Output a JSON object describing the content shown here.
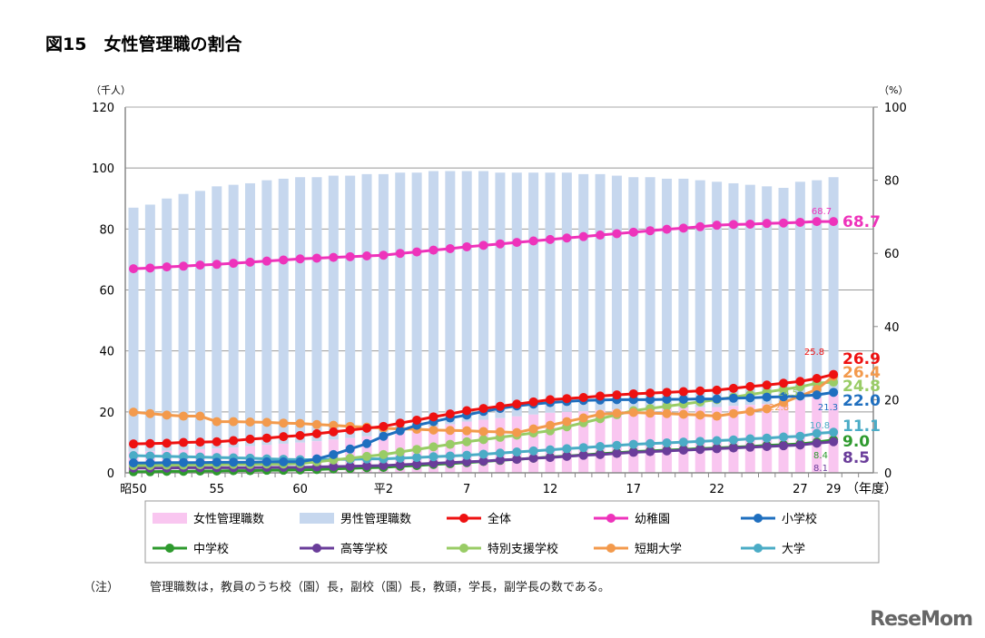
{
  "title": "図15　女性管理職の割合",
  "note": {
    "label": "（注）",
    "text": "管理職数は，教員のうち校（園）長，副校（園）長，教頭，学長，副学長の数である。"
  },
  "logo": "ReseMom",
  "chart_data": {
    "type": "bar+line",
    "left_axis": {
      "unit": "（千人）",
      "range": [
        0,
        120
      ],
      "ticks": [
        0,
        20,
        40,
        60,
        80,
        100,
        120
      ]
    },
    "right_axis": {
      "unit": "（%）",
      "range": [
        0,
        100
      ],
      "ticks": [
        0,
        20,
        40,
        60,
        80,
        100
      ]
    },
    "x_unit": "（年度）",
    "x_tick_labels": [
      {
        "i": 0,
        "label": "昭50"
      },
      {
        "i": 5,
        "label": "55"
      },
      {
        "i": 10,
        "label": "60"
      },
      {
        "i": 15,
        "label": "平2"
      },
      {
        "i": 20,
        "label": "7"
      },
      {
        "i": 25,
        "label": "12"
      },
      {
        "i": 30,
        "label": "17"
      },
      {
        "i": 35,
        "label": "22"
      },
      {
        "i": 40,
        "label": "27"
      },
      {
        "i": 42,
        "label": "29"
      }
    ],
    "grid": true,
    "legend_placement": "bottom",
    "bars": {
      "total_managers_thousand": [
        87,
        88,
        90,
        91.5,
        92.5,
        94,
        94.5,
        95,
        96,
        96.5,
        97,
        97,
        97.5,
        97.5,
        98,
        98,
        98.5,
        98.5,
        99,
        99,
        99,
        99,
        98.5,
        98.5,
        98.5,
        98.5,
        98.5,
        98,
        98,
        97.5,
        97,
        97,
        96.5,
        96.5,
        96,
        95.5,
        95,
        94.5,
        94,
        93.5,
        95.5,
        96,
        97
      ],
      "female": {
        "name": "女性管理職数",
        "color": "#f9c6f0"
      },
      "male": {
        "name": "男性管理職数",
        "color": "#c6d7ee"
      }
    },
    "series": [
      {
        "name": "全体",
        "color": "#ee1111",
        "values": [
          7.9,
          8.0,
          8.1,
          8.3,
          8.4,
          8.5,
          8.8,
          9.2,
          9.5,
          9.9,
          10.2,
          10.7,
          11.2,
          11.7,
          12.2,
          12.7,
          13.6,
          14.4,
          15.3,
          16.1,
          17.0,
          17.6,
          18.2,
          18.8,
          19.4,
          20.0,
          20.3,
          20.6,
          21.0,
          21.3,
          21.6,
          21.8,
          22.0,
          22.2,
          22.4,
          22.6,
          23.1,
          23.6,
          24.0,
          24.5,
          25.0,
          25.8,
          26.9
        ],
        "end_label": "26.9",
        "callout": "25.8"
      },
      {
        "name": "幼稚園",
        "color": "#ee33bb",
        "values": [
          55.8,
          56.0,
          56.3,
          56.5,
          56.8,
          57.0,
          57.3,
          57.6,
          57.9,
          58.2,
          58.5,
          58.7,
          58.9,
          59.1,
          59.3,
          59.5,
          60.0,
          60.4,
          60.9,
          61.3,
          61.8,
          62.2,
          62.6,
          63.0,
          63.4,
          63.8,
          64.2,
          64.6,
          65.0,
          65.4,
          65.8,
          66.2,
          66.6,
          66.9,
          67.3,
          67.7,
          67.9,
          68.0,
          68.2,
          68.3,
          68.5,
          68.7,
          68.7
        ],
        "end_label": "68.7",
        "callout": "68.7"
      },
      {
        "name": "小学校",
        "color": "#1f6fbf",
        "values": [
          2.7,
          2.7,
          2.8,
          2.8,
          2.8,
          2.9,
          2.9,
          2.9,
          3.0,
          3.0,
          3.0,
          3.8,
          5.0,
          6.5,
          8.0,
          10.0,
          11.5,
          13.0,
          14.0,
          15.0,
          15.8,
          16.8,
          17.6,
          18.3,
          18.8,
          19.2,
          19.5,
          19.8,
          19.9,
          20.0,
          20.0,
          20.0,
          20.1,
          20.1,
          20.2,
          20.2,
          20.4,
          20.5,
          20.7,
          20.8,
          21.0,
          21.3,
          22.0
        ],
        "end_label": "22.0",
        "callout": "21.3"
      },
      {
        "name": "中学校",
        "color": "#2e9a2e",
        "values": [
          0.3,
          0.3,
          0.4,
          0.4,
          0.5,
          0.5,
          0.6,
          0.6,
          0.7,
          0.7,
          0.8,
          0.9,
          1.1,
          1.2,
          1.4,
          1.5,
          1.8,
          2.0,
          2.3,
          2.5,
          2.8,
          3.1,
          3.4,
          3.7,
          4.0,
          4.3,
          4.6,
          4.9,
          5.2,
          5.5,
          5.8,
          6.0,
          6.2,
          6.4,
          6.6,
          6.8,
          7.0,
          7.2,
          7.5,
          7.7,
          7.9,
          8.4,
          9.0
        ],
        "end_label": "9.0",
        "callout": "8.4"
      },
      {
        "name": "高等学校",
        "color": "#6a3d9a",
        "values": [
          1.3,
          1.3,
          1.3,
          1.4,
          1.4,
          1.4,
          1.4,
          1.4,
          1.5,
          1.5,
          1.5,
          1.6,
          1.7,
          1.8,
          1.9,
          2.0,
          2.2,
          2.4,
          2.6,
          2.8,
          3.0,
          3.2,
          3.5,
          3.7,
          4.0,
          4.2,
          4.5,
          4.8,
          5.0,
          5.3,
          5.6,
          5.8,
          6.0,
          6.2,
          6.4,
          6.6,
          6.8,
          7.0,
          7.2,
          7.4,
          7.6,
          8.1,
          8.5
        ],
        "end_label": "8.5",
        "callout": "8.1"
      },
      {
        "name": "特別支援学校",
        "color": "#99cc66",
        "values": [
          2.0,
          2.0,
          2.1,
          2.1,
          2.2,
          2.2,
          2.3,
          2.3,
          2.4,
          2.4,
          2.5,
          3.0,
          3.5,
          4.0,
          4.5,
          5.0,
          5.7,
          6.4,
          7.1,
          7.8,
          8.5,
          9.1,
          9.7,
          10.3,
          10.9,
          11.5,
          12.6,
          13.7,
          14.8,
          15.9,
          17.0,
          17.6,
          18.2,
          18.8,
          19.4,
          20.0,
          20.7,
          21.4,
          22.1,
          22.8,
          23.5,
          24.5,
          24.8
        ],
        "end_label": "24.8",
        "callout": "24.5"
      },
      {
        "name": "短期大学",
        "color": "#f39a4c",
        "values": [
          16.6,
          16.2,
          15.8,
          15.5,
          15.5,
          14.0,
          14.0,
          13.9,
          13.8,
          13.6,
          13.5,
          13.2,
          13.0,
          12.7,
          12.5,
          12.2,
          12.0,
          11.9,
          11.7,
          11.6,
          11.5,
          11.3,
          11.2,
          11.0,
          12.0,
          13.0,
          14.0,
          15.0,
          16.0,
          16.3,
          16.5,
          16.3,
          16.2,
          16.0,
          15.8,
          15.5,
          16.2,
          16.8,
          17.5,
          19.2,
          21.0,
          22.8,
          26.4
        ],
        "end_label": "26.4",
        "callout": "22.8"
      },
      {
        "name": "大学",
        "color": "#4bacc6",
        "values": [
          4.7,
          4.6,
          4.5,
          4.4,
          4.3,
          4.2,
          4.1,
          4.0,
          3.8,
          3.7,
          3.6,
          3.6,
          3.7,
          3.7,
          3.8,
          3.8,
          4.0,
          4.2,
          4.4,
          4.6,
          4.8,
          5.1,
          5.4,
          5.7,
          6.0,
          6.3,
          6.6,
          6.9,
          7.2,
          7.5,
          7.8,
          8.0,
          8.2,
          8.4,
          8.6,
          8.8,
          9.0,
          9.3,
          9.5,
          9.8,
          10.0,
          10.8,
          11.1
        ],
        "end_label": "11.1",
        "callout": "10.8"
      }
    ]
  }
}
